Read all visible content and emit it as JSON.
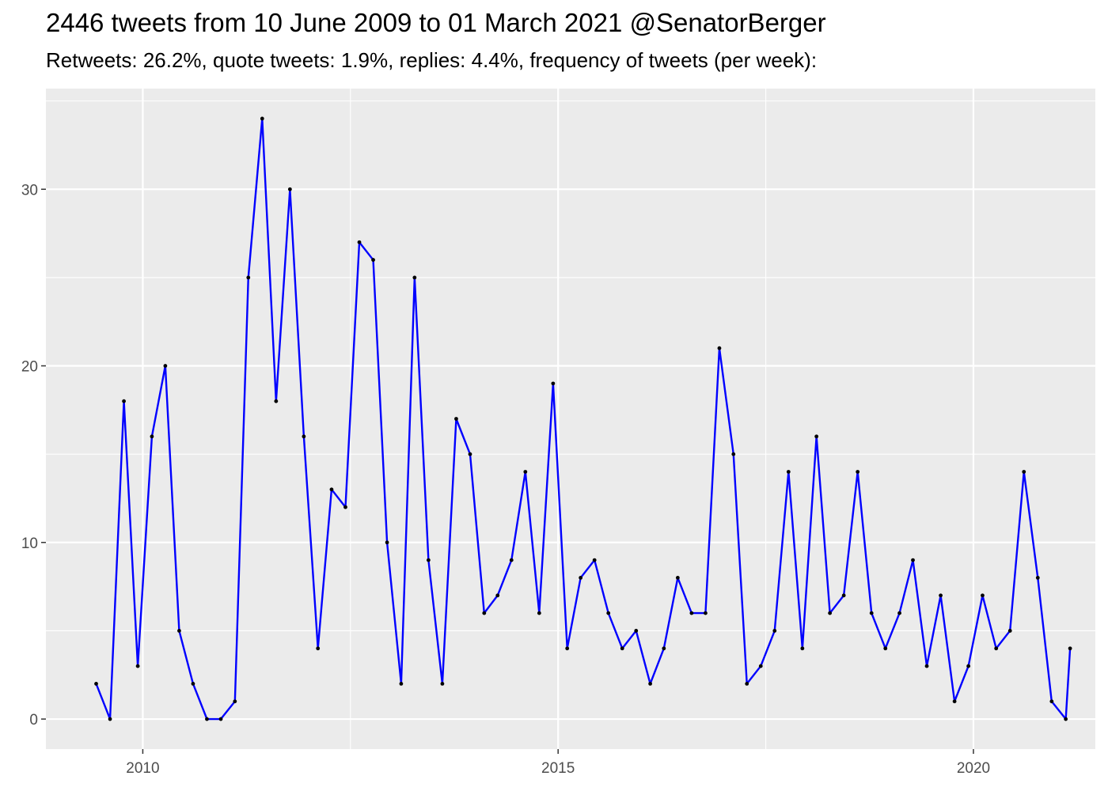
{
  "title": "2446 tweets from 10 June 2009 to 01 March 2021 @SenatorBerger",
  "subtitle": "Retweets: 26.2%, quote tweets: 1.9%, replies: 4.4%, frequency of tweets (per week):",
  "colors": {
    "panel": "#ebebeb",
    "grid": "#ffffff",
    "line": "#0000ff",
    "point": "#000000",
    "tick_text": "#4d4d4d"
  },
  "chart_data": {
    "type": "line",
    "title": "2446 tweets from 10 June 2009 to 01 March 2021 @SenatorBerger",
    "subtitle": "Retweets: 26.2%, quote tweets: 1.9%, replies: 4.4%, frequency of tweets (per week):",
    "xlabel": "",
    "ylabel": "",
    "x_type": "date",
    "xlim": [
      "2008-11-01",
      "2021-06-20"
    ],
    "ylim": [
      -1.7,
      35.7
    ],
    "x_ticks": [
      "2010-01-01",
      "2015-01-01",
      "2020-01-01"
    ],
    "x_tick_labels": [
      "2010",
      "2015",
      "2020"
    ],
    "y_ticks": [
      0,
      10,
      20,
      30
    ],
    "y_tick_labels": [
      "0",
      "10",
      "20",
      "30"
    ],
    "grid": true,
    "legend": "none",
    "series": [
      {
        "x": [
          "2009-06-10",
          "2009-08-10",
          "2009-10-10",
          "2009-12-10",
          "2010-02-10",
          "2010-04-10",
          "2010-06-10",
          "2010-08-10",
          "2010-10-10",
          "2010-12-10",
          "2011-02-10",
          "2011-04-10",
          "2011-06-10",
          "2011-08-10",
          "2011-10-10",
          "2011-12-10",
          "2012-02-10",
          "2012-04-10",
          "2012-06-10",
          "2012-08-10",
          "2012-10-10",
          "2012-12-10",
          "2013-02-10",
          "2013-04-10",
          "2013-06-10",
          "2013-08-10",
          "2013-10-10",
          "2013-12-10",
          "2014-02-10",
          "2014-04-10",
          "2014-06-10",
          "2014-08-10",
          "2014-10-10",
          "2014-12-10",
          "2015-02-10",
          "2015-04-10",
          "2015-06-10",
          "2015-08-10",
          "2015-10-10",
          "2015-12-10",
          "2016-02-10",
          "2016-04-10",
          "2016-06-10",
          "2016-08-10",
          "2016-10-10",
          "2016-12-10",
          "2017-02-10",
          "2017-04-10",
          "2017-06-10",
          "2017-08-10",
          "2017-10-10",
          "2017-12-10",
          "2018-02-10",
          "2018-04-10",
          "2018-06-10",
          "2018-08-10",
          "2018-10-10",
          "2018-12-10",
          "2019-02-10",
          "2019-04-10",
          "2019-06-10",
          "2019-08-10",
          "2019-10-10",
          "2019-12-10",
          "2020-02-10",
          "2020-04-10",
          "2020-06-10",
          "2020-08-10",
          "2020-10-10",
          "2020-12-10",
          "2021-02-10",
          "2021-03-01"
        ],
        "y": [
          2,
          0,
          18,
          3,
          16,
          20,
          5,
          2,
          0,
          0,
          1,
          25,
          34,
          18,
          30,
          16,
          4,
          13,
          12,
          27,
          26,
          10,
          2,
          25,
          9,
          2,
          17,
          15,
          6,
          7,
          9,
          14,
          6,
          19,
          4,
          8,
          9,
          6,
          4,
          5,
          2,
          4,
          8,
          6,
          6,
          21,
          15,
          2,
          3,
          5,
          14,
          4,
          16,
          6,
          7,
          14,
          6,
          4,
          6,
          9,
          3,
          7,
          1,
          3,
          7,
          4,
          5,
          14,
          8,
          1,
          0,
          4
        ]
      }
    ]
  }
}
